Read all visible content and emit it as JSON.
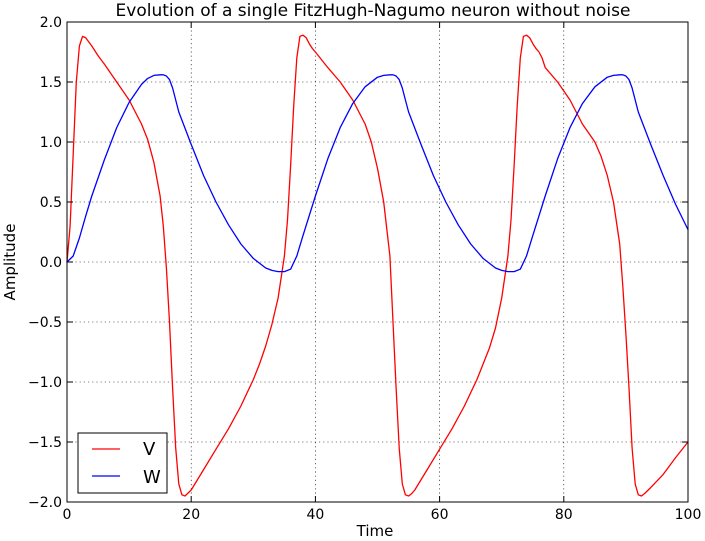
{
  "chart_data": {
    "type": "line",
    "title": "Evolution of a single FitzHugh-Nagumo neuron without noise",
    "xlabel": "Time",
    "ylabel": "Amplitude",
    "xlim": [
      0,
      100
    ],
    "ylim": [
      -2.0,
      2.0
    ],
    "xticks": [
      0,
      20,
      40,
      60,
      80,
      100
    ],
    "xtick_labels": [
      "0",
      "20",
      "40",
      "60",
      "80",
      "100"
    ],
    "yticks": [
      2.0,
      1.5,
      1.0,
      0.5,
      0.0,
      -0.5,
      -1.0,
      -1.5,
      -2.0
    ],
    "ytick_labels": [
      "2.0",
      "1.5",
      "1.0",
      "0.5",
      "0.0",
      "−0.5",
      "−1.0",
      "−1.5",
      "−2.0"
    ],
    "grid": true,
    "legend_position": "lower-left",
    "series": [
      {
        "name": "V",
        "color": "#ff0000",
        "x": [
          0,
          0.5,
          1,
          1.5,
          2,
          2.5,
          3,
          4,
          5,
          6,
          8,
          10,
          12,
          13,
          14,
          15,
          15.5,
          16,
          16.5,
          17,
          17.5,
          18,
          18.5,
          19,
          20,
          22,
          24,
          26,
          28,
          30,
          31,
          32,
          33,
          34,
          35,
          35.5,
          36,
          36.5,
          37,
          37.5,
          38,
          38.5,
          39,
          39.5,
          40,
          42,
          44,
          46,
          48,
          49,
          50,
          51,
          52,
          52.5,
          53,
          53.5,
          54,
          54.5,
          55,
          55.5,
          56,
          58,
          60,
          62,
          64,
          66,
          68,
          69,
          70,
          71,
          71.5,
          72,
          72.5,
          73,
          73.5,
          74,
          74.5,
          75,
          75.5,
          76,
          76.5,
          77,
          79,
          81,
          83,
          85,
          86,
          87,
          88,
          89,
          89.5,
          90,
          90.5,
          91,
          91.5,
          92,
          92.5,
          93,
          94,
          96,
          98,
          100
        ],
        "y": [
          0.0,
          0.3,
          0.9,
          1.5,
          1.8,
          1.88,
          1.87,
          1.8,
          1.72,
          1.65,
          1.5,
          1.35,
          1.15,
          1.02,
          0.83,
          0.55,
          0.3,
          -0.05,
          -0.5,
          -1.05,
          -1.55,
          -1.85,
          -1.94,
          -1.95,
          -1.9,
          -1.73,
          -1.56,
          -1.39,
          -1.2,
          -0.98,
          -0.85,
          -0.7,
          -0.52,
          -0.3,
          0.05,
          0.35,
          0.8,
          1.3,
          1.7,
          1.88,
          1.89,
          1.87,
          1.82,
          1.78,
          1.75,
          1.62,
          1.5,
          1.35,
          1.15,
          1.0,
          0.78,
          0.5,
          0.05,
          -0.5,
          -1.05,
          -1.55,
          -1.85,
          -1.94,
          -1.95,
          -1.93,
          -1.9,
          -1.73,
          -1.56,
          -1.39,
          -1.2,
          -0.98,
          -0.72,
          -0.55,
          -0.3,
          0.05,
          0.35,
          0.8,
          1.3,
          1.7,
          1.88,
          1.89,
          1.87,
          1.82,
          1.78,
          1.75,
          1.7,
          1.62,
          1.5,
          1.35,
          1.15,
          1.0,
          0.88,
          0.72,
          0.5,
          0.15,
          -0.2,
          -0.6,
          -1.05,
          -1.55,
          -1.85,
          -1.94,
          -1.95,
          -1.93,
          -1.88,
          -1.77,
          -1.63,
          -1.5
        ]
      },
      {
        "name": "W",
        "color": "#0000ff",
        "x": [
          0,
          1,
          2,
          3,
          4,
          6,
          8,
          10,
          12,
          13,
          14,
          15,
          15.5,
          16,
          16.5,
          17,
          17.5,
          18,
          20,
          22,
          24,
          26,
          28,
          30,
          32,
          33,
          34,
          35,
          36,
          37,
          38,
          40,
          42,
          44,
          46,
          48,
          50,
          51,
          52,
          52.5,
          53,
          53.5,
          54,
          54.5,
          55,
          57,
          59,
          61,
          63,
          65,
          67,
          69,
          70,
          71,
          72,
          73,
          74,
          75,
          77,
          79,
          81,
          83,
          85,
          87,
          88,
          89,
          89.5,
          90,
          90.5,
          91,
          91.5,
          92,
          94,
          96,
          98,
          100
        ],
        "y": [
          0.0,
          0.05,
          0.2,
          0.38,
          0.55,
          0.85,
          1.12,
          1.33,
          1.48,
          1.53,
          1.555,
          1.56,
          1.56,
          1.55,
          1.52,
          1.45,
          1.35,
          1.25,
          0.98,
          0.72,
          0.5,
          0.31,
          0.15,
          0.03,
          -0.05,
          -0.07,
          -0.08,
          -0.08,
          -0.06,
          0.05,
          0.22,
          0.55,
          0.86,
          1.12,
          1.32,
          1.46,
          1.54,
          1.555,
          1.56,
          1.56,
          1.55,
          1.52,
          1.45,
          1.35,
          1.25,
          0.98,
          0.72,
          0.5,
          0.31,
          0.15,
          0.03,
          -0.05,
          -0.07,
          -0.08,
          -0.08,
          -0.06,
          0.05,
          0.22,
          0.55,
          0.86,
          1.12,
          1.32,
          1.46,
          1.54,
          1.555,
          1.56,
          1.56,
          1.55,
          1.52,
          1.45,
          1.35,
          1.25,
          0.98,
          0.72,
          0.48,
          0.27
        ]
      }
    ]
  }
}
